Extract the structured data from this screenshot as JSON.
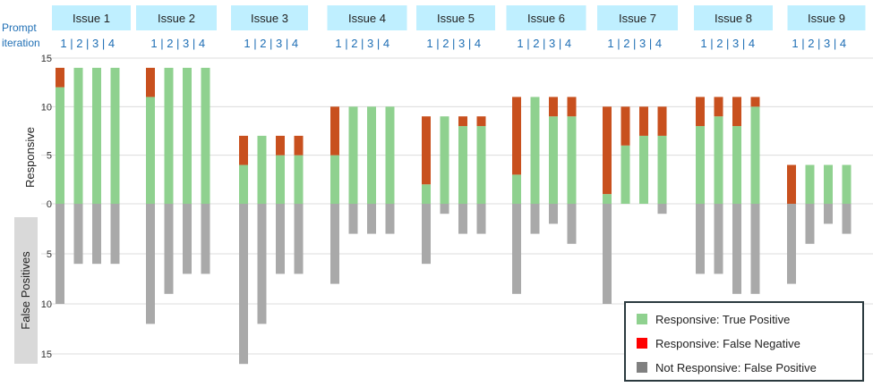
{
  "chart_data": {
    "type": "bar",
    "header_label": "Prompt iteration",
    "issues": [
      "Issue 1",
      "Issue 2",
      "Issue 3",
      "Issue 4",
      "Issue 5",
      "Issue 6",
      "Issue 7",
      "Issue 8",
      "Issue 9"
    ],
    "iterations": [
      "1",
      "2",
      "3",
      "4"
    ],
    "ylabel_top": "Responsive",
    "ylabel_bottom": "False Positives",
    "y_ticks_top": [
      0,
      5,
      10,
      15
    ],
    "y_ticks_bottom": [
      5,
      10,
      15
    ],
    "ylim_top": [
      0,
      15
    ],
    "ylim_bottom": [
      0,
      15
    ],
    "grid": true,
    "legend_position": "bottom-right",
    "series": [
      {
        "name": "Responsive: True Positive",
        "color": "#8fd18f",
        "values": [
          [
            12,
            14,
            14,
            14
          ],
          [
            11,
            14,
            14,
            14
          ],
          [
            4,
            7,
            5,
            5
          ],
          [
            5,
            10,
            10,
            10
          ],
          [
            2,
            9,
            8,
            8
          ],
          [
            3,
            11,
            9,
            9
          ],
          [
            1,
            6,
            7,
            7
          ],
          [
            8,
            9,
            8,
            10
          ],
          [
            0,
            4,
            4,
            4
          ]
        ]
      },
      {
        "name": "Responsive: False Negative",
        "color": "#c8501e",
        "legend_color": "#ff0000",
        "values": [
          [
            2,
            0,
            0,
            0
          ],
          [
            3,
            0,
            0,
            0
          ],
          [
            3,
            0,
            2,
            2
          ],
          [
            5,
            0,
            0,
            0
          ],
          [
            7,
            0,
            1,
            1
          ],
          [
            8,
            0,
            2,
            2
          ],
          [
            9,
            4,
            3,
            3
          ],
          [
            3,
            2,
            3,
            1
          ],
          [
            4,
            0,
            0,
            0
          ]
        ]
      },
      {
        "name": "Not Responsive: False Positive",
        "color": "#a9a9a9",
        "legend_color": "#808080",
        "values": [
          [
            10,
            6,
            6,
            6
          ],
          [
            12,
            9,
            7,
            7
          ],
          [
            16,
            12,
            7,
            7
          ],
          [
            8,
            3,
            3,
            3
          ],
          [
            6,
            1,
            3,
            3
          ],
          [
            9,
            3,
            2,
            4
          ],
          [
            10,
            0,
            0,
            1
          ],
          [
            7,
            7,
            9,
            9
          ],
          [
            8,
            4,
            2,
            3
          ]
        ]
      }
    ]
  }
}
